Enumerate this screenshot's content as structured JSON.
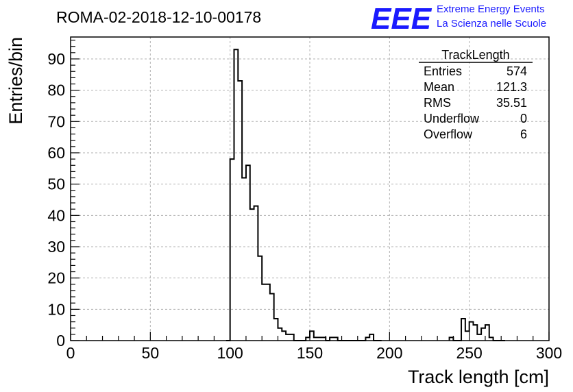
{
  "header": {
    "run_title": "ROMA-02-2018-12-10-00178",
    "logo_text": "EEE",
    "logo_line1": "Extreme Energy Events",
    "logo_line2": "La Scienza nelle Scuole",
    "logo_color": "#1a1aff"
  },
  "stats": {
    "title": "TrackLength",
    "rows": [
      {
        "label": "Entries",
        "value": "574"
      },
      {
        "label": "Mean",
        "value": "121.3"
      },
      {
        "label": "RMS",
        "value": "35.51"
      },
      {
        "label": "Underflow",
        "value": "0"
      },
      {
        "label": "Overflow",
        "value": "6"
      }
    ]
  },
  "chart_data": {
    "type": "bar",
    "title": "ROMA-02-2018-12-10-00178",
    "xlabel": "Track length [cm]",
    "ylabel": "Entries/bin",
    "xlim": [
      0,
      300
    ],
    "ylim": [
      0,
      97
    ],
    "grid": true,
    "bin_width": 2.5,
    "x_ticks": [
      0,
      50,
      100,
      150,
      200,
      250,
      300
    ],
    "y_ticks": [
      0,
      10,
      20,
      30,
      40,
      50,
      60,
      70,
      80,
      90
    ],
    "bin_edges_start": [
      97.5,
      100,
      102.5,
      105,
      107.5,
      110,
      112.5,
      115,
      117.5,
      120,
      122.5,
      125,
      127.5,
      130,
      132.5,
      135,
      137.5,
      140,
      142.5,
      145,
      147.5,
      150,
      152.5,
      155,
      157.5,
      160,
      162.5,
      165,
      167.5,
      170,
      172.5,
      175,
      177.5,
      180,
      182.5,
      185,
      187.5,
      190,
      192.5,
      237.5,
      240,
      242.5,
      245,
      247.5,
      250,
      252.5,
      255,
      257.5,
      260,
      262.5,
      265,
      267.5,
      270
    ],
    "values": [
      0,
      58,
      93,
      83,
      52,
      56,
      42,
      43,
      27,
      18,
      18,
      15,
      7,
      4,
      3,
      2,
      2,
      0,
      0,
      0,
      1,
      3,
      1,
      1,
      1,
      0,
      1,
      1,
      0,
      0,
      0,
      0,
      0,
      0,
      0,
      1,
      2,
      0,
      0,
      1,
      0,
      0,
      7,
      3,
      6,
      5,
      2,
      4,
      5,
      1,
      0,
      0,
      0
    ]
  }
}
